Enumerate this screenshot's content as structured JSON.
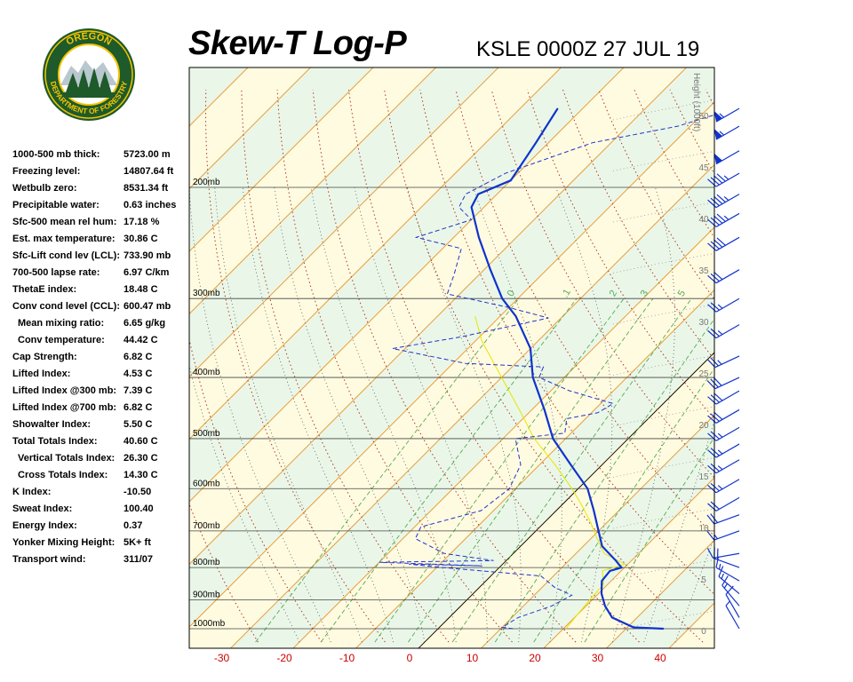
{
  "header": {
    "title": "Skew-T Log-P",
    "station": "KSLE 0000Z 27 JUL 19"
  },
  "logo": {
    "top_text": "OREGON",
    "bottom_text": "DEPARTMENT OF FORESTRY",
    "ring_color": "#1e5a2a",
    "text_color": "#f4c400"
  },
  "indices": [
    {
      "label": "1000-500 mb thick:",
      "value": "5723.00 m",
      "indent": false
    },
    {
      "label": "Freezing level:",
      "value": "14807.64 ft",
      "indent": false
    },
    {
      "label": "Wetbulb zero:",
      "value": "8531.34 ft",
      "indent": false
    },
    {
      "label": "Precipitable water:",
      "value": "0.63 inches",
      "indent": false
    },
    {
      "label": "Sfc-500 mean rel hum:",
      "value": "17.18 %",
      "indent": false
    },
    {
      "label": "Est. max temperature:",
      "value": "30.86 C",
      "indent": false
    },
    {
      "label": "Sfc-Lift cond lev (LCL):",
      "value": "733.90 mb",
      "indent": false
    },
    {
      "label": "700-500 lapse rate:",
      "value": "6.97 C/km",
      "indent": false
    },
    {
      "label": "ThetaE index:",
      "value": "18.48 C",
      "indent": false
    },
    {
      "label": "Conv cond level (CCL):",
      "value": "600.47 mb",
      "indent": false
    },
    {
      "label": "Mean mixing ratio:",
      "value": "6.65 g/kg",
      "indent": true
    },
    {
      "label": "Conv temperature:",
      "value": "44.42 C",
      "indent": true
    },
    {
      "label": "Cap Strength:",
      "value": "6.82 C",
      "indent": false
    },
    {
      "label": "Lifted Index:",
      "value": "4.53 C",
      "indent": false
    },
    {
      "label": "Lifted Index @300 mb:",
      "value": "7.39 C",
      "indent": false
    },
    {
      "label": "Lifted Index @700 mb:",
      "value": "6.82 C",
      "indent": false
    },
    {
      "label": "Showalter Index:",
      "value": "5.50 C",
      "indent": false
    },
    {
      "label": "Total Totals Index:",
      "value": "40.60 C",
      "indent": false
    },
    {
      "label": "Vertical Totals Index:",
      "value": "26.30 C",
      "indent": true
    },
    {
      "label": "Cross Totals Index:",
      "value": "14.30 C",
      "indent": true
    },
    {
      "label": "K Index:",
      "value": "-10.50",
      "indent": false
    },
    {
      "label": "Sweat Index:",
      "value": "100.40",
      "indent": false
    },
    {
      "label": "Energy Index:",
      "value": "0.37",
      "indent": false
    },
    {
      "label": "Yonker Mixing Height:",
      "value": "5K+ ft",
      "indent": false
    },
    {
      "label": "Transport wind:",
      "value": "311/07",
      "indent": false
    }
  ],
  "chart_data": {
    "type": "line",
    "x_ticks": [
      -30,
      -20,
      -10,
      0,
      10,
      20,
      30,
      40
    ],
    "pressure_levels": [
      {
        "label": "200mb",
        "p": 200
      },
      {
        "label": "300mb",
        "p": 300
      },
      {
        "label": "400mb",
        "p": 400
      },
      {
        "label": "500mb",
        "p": 500
      },
      {
        "label": "600mb",
        "p": 600
      },
      {
        "label": "700mb",
        "p": 700
      },
      {
        "label": "800mb",
        "p": 800
      },
      {
        "label": "900mb",
        "p": 900
      },
      {
        "label": "1000mb",
        "p": 1000
      }
    ],
    "height_axis": {
      "label": "Height (1000ft)",
      "ticks": [
        0,
        5,
        10,
        15,
        20,
        25,
        30,
        35,
        40,
        45,
        50
      ]
    },
    "mixing_ratio_labels": [
      "0",
      ".1",
      "2",
      "3",
      "5"
    ],
    "temperature": [
      {
        "p": 1000,
        "t": 36
      },
      {
        "p": 995,
        "t": 31
      },
      {
        "p": 960,
        "t": 26
      },
      {
        "p": 920,
        "t": 23
      },
      {
        "p": 880,
        "t": 20.5
      },
      {
        "p": 840,
        "t": 18.5
      },
      {
        "p": 810,
        "t": 18.2
      },
      {
        "p": 800,
        "t": 19.5
      },
      {
        "p": 780,
        "t": 17.5
      },
      {
        "p": 740,
        "t": 13
      },
      {
        "p": 700,
        "t": 10
      },
      {
        "p": 650,
        "t": 6
      },
      {
        "p": 600,
        "t": 1.5
      },
      {
        "p": 550,
        "t": -5
      },
      {
        "p": 500,
        "t": -12
      },
      {
        "p": 450,
        "t": -18
      },
      {
        "p": 400,
        "t": -25
      },
      {
        "p": 360,
        "t": -30
      },
      {
        "p": 320,
        "t": -37.5
      },
      {
        "p": 300,
        "t": -42.5
      },
      {
        "p": 270,
        "t": -49
      },
      {
        "p": 240,
        "t": -56
      },
      {
        "p": 215,
        "t": -62
      },
      {
        "p": 205,
        "t": -63
      },
      {
        "p": 195,
        "t": -60
      },
      {
        "p": 170,
        "t": -62
      },
      {
        "p": 150,
        "t": -64
      }
    ],
    "dewpoint": [
      {
        "p": 1000,
        "t": 12
      },
      {
        "p": 995,
        "t": 10
      },
      {
        "p": 960,
        "t": 11
      },
      {
        "p": 920,
        "t": 14.5
      },
      {
        "p": 885,
        "t": 16
      },
      {
        "p": 860,
        "t": 12
      },
      {
        "p": 825,
        "t": 8
      },
      {
        "p": 800,
        "t": -9
      },
      {
        "p": 790,
        "t": -15
      },
      {
        "p": 795,
        "t": -3
      },
      {
        "p": 785,
        "t": -20
      },
      {
        "p": 780,
        "t": -2
      },
      {
        "p": 760,
        "t": -11
      },
      {
        "p": 720,
        "t": -18
      },
      {
        "p": 690,
        "t": -19
      },
      {
        "p": 650,
        "t": -12
      },
      {
        "p": 600,
        "t": -11
      },
      {
        "p": 550,
        "t": -13
      },
      {
        "p": 500,
        "t": -18
      },
      {
        "p": 490,
        "t": -11
      },
      {
        "p": 465,
        "t": -13
      },
      {
        "p": 455,
        "t": -9
      },
      {
        "p": 440,
        "t": -8
      },
      {
        "p": 420,
        "t": -17
      },
      {
        "p": 400,
        "t": -24
      },
      {
        "p": 385,
        "t": -25
      },
      {
        "p": 380,
        "t": -38
      },
      {
        "p": 360,
        "t": -52
      },
      {
        "p": 345,
        "t": -43
      },
      {
        "p": 322,
        "t": -32
      },
      {
        "p": 310,
        "t": -40
      },
      {
        "p": 295,
        "t": -52
      },
      {
        "p": 275,
        "t": -54
      },
      {
        "p": 250,
        "t": -57
      },
      {
        "p": 240,
        "t": -66
      },
      {
        "p": 225,
        "t": -60
      },
      {
        "p": 215,
        "t": -64
      },
      {
        "p": 205,
        "t": -65
      },
      {
        "p": 190,
        "t": -62
      },
      {
        "p": 170,
        "t": -53
      },
      {
        "p": 160,
        "t": -42
      },
      {
        "p": 152,
        "t": -37
      }
    ],
    "parcel_trace": [
      {
        "p": 1000,
        "t": 20.4
      },
      {
        "p": 950,
        "t": 20.0
      },
      {
        "p": 900,
        "t": 19.6
      },
      {
        "p": 850,
        "t": 19.3
      },
      {
        "p": 810,
        "t": 17.0
      },
      {
        "p": 790,
        "t": 19.5
      },
      {
        "p": 760,
        "t": 14.5
      },
      {
        "p": 720,
        "t": 11.0
      },
      {
        "p": 680,
        "t": 7.5
      },
      {
        "p": 640,
        "t": 3.5
      },
      {
        "p": 600,
        "t": -1.0
      },
      {
        "p": 550,
        "t": -7.5
      },
      {
        "p": 500,
        "t": -15
      },
      {
        "p": 450,
        "t": -22
      },
      {
        "p": 400,
        "t": -30
      },
      {
        "p": 350,
        "t": -39
      },
      {
        "p": 320,
        "t": -44
      }
    ],
    "wind_barbs": [
      {
        "p": 1000,
        "dir": 330,
        "spd": 5
      },
      {
        "p": 960,
        "dir": 330,
        "spd": 10
      },
      {
        "p": 920,
        "dir": 320,
        "spd": 15
      },
      {
        "p": 880,
        "dir": 310,
        "spd": 15
      },
      {
        "p": 840,
        "dir": 300,
        "spd": 15
      },
      {
        "p": 800,
        "dir": 290,
        "spd": 20
      },
      {
        "p": 760,
        "dir": 260,
        "spd": 10
      },
      {
        "p": 700,
        "dir": 250,
        "spd": 15
      },
      {
        "p": 660,
        "dir": 250,
        "spd": 20
      },
      {
        "p": 620,
        "dir": 240,
        "spd": 20
      },
      {
        "p": 580,
        "dir": 240,
        "spd": 25
      },
      {
        "p": 540,
        "dir": 240,
        "spd": 25
      },
      {
        "p": 510,
        "dir": 240,
        "spd": 25
      },
      {
        "p": 480,
        "dir": 240,
        "spd": 25
      },
      {
        "p": 450,
        "dir": 240,
        "spd": 30
      },
      {
        "p": 420,
        "dir": 240,
        "spd": 30
      },
      {
        "p": 400,
        "dir": 245,
        "spd": 30
      },
      {
        "p": 370,
        "dir": 245,
        "spd": 25
      },
      {
        "p": 330,
        "dir": 240,
        "spd": 25
      },
      {
        "p": 300,
        "dir": 240,
        "spd": 25
      },
      {
        "p": 270,
        "dir": 240,
        "spd": 30
      },
      {
        "p": 240,
        "dir": 240,
        "spd": 40
      },
      {
        "p": 220,
        "dir": 240,
        "spd": 45
      },
      {
        "p": 205,
        "dir": 240,
        "spd": 45
      },
      {
        "p": 190,
        "dir": 240,
        "spd": 45
      },
      {
        "p": 175,
        "dir": 240,
        "spd": 50
      },
      {
        "p": 160,
        "dir": 240,
        "spd": 55
      },
      {
        "p": 150,
        "dir": 240,
        "spd": 55
      }
    ]
  }
}
